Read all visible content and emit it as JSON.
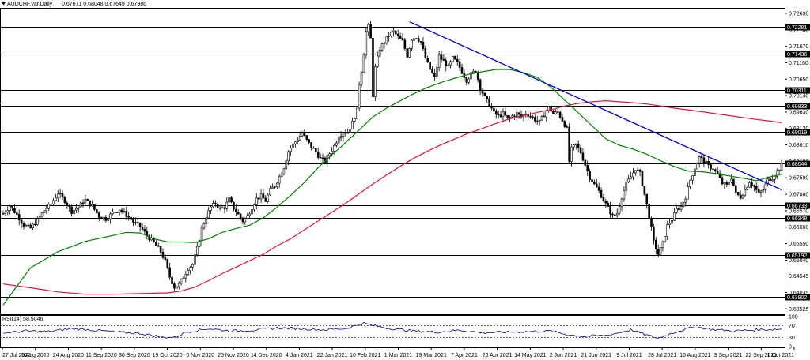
{
  "header": {
    "title": "AUDCHF.var,Daily",
    "ohlc": "0.67671 0.68048 0.67649 0.67986"
  },
  "rsi": {
    "label": "RSI(14) 58.5046",
    "levels": [
      100,
      70,
      30,
      0
    ],
    "level_labels": [
      "100",
      "70",
      "30",
      "0"
    ]
  },
  "colors": {
    "candles": "#000000",
    "sma_fast": "#008000",
    "sma_slow": "#dc143c",
    "trendline": "#0000cd",
    "rsi": "#000080",
    "grid": "#000000",
    "level_tag_bg": "#000000"
  },
  "chart_data": {
    "type": "candlestick",
    "x_labels": [
      "27 Jul 2020",
      "5 Aug 2020",
      "24 Aug 2020",
      "11 Sep 2020",
      "30 Sep 2020",
      "19 Oct 2020",
      "6 Nov 2020",
      "25 Nov 2020",
      "14 Dec 2020",
      "4 Jan 2021",
      "22 Jan 2021",
      "10 Feb 2021",
      "1 Mar 2021",
      "19 Mar 2021",
      "7 Apr 2021",
      "26 Apr 2021",
      "14 May 2021",
      "2 Jun 2021",
      "21 Jun 2021",
      "9 Jul 2021",
      "28 Jul 2021",
      "16 Aug 2021",
      "3 Sep 2021",
      "22 Sep 2021",
      "11 Oct 2021"
    ],
    "y_ticks": [
      "0.72690",
      "0.72180",
      "0.71670",
      "0.71160",
      "0.70650",
      "0.70140",
      "0.69630",
      "0.69120",
      "0.68610",
      "0.68100",
      "0.67590",
      "0.67080",
      "0.66570",
      "0.66060",
      "0.65550",
      "0.65040",
      "0.64545",
      "0.64035",
      "0.63525"
    ],
    "ylim": [
      0.6336,
      0.7286
    ],
    "levels": [
      "0.72281",
      "0.71436",
      "0.70311",
      "0.69833",
      "0.69019",
      "0.68044",
      "0.66733",
      "0.66348",
      "0.65192",
      "0.63902"
    ],
    "close_path": [
      [
        0,
        0.6648
      ],
      [
        3,
        0.6672
      ],
      [
        6,
        0.6645
      ],
      [
        9,
        0.6612
      ],
      [
        12,
        0.6603
      ],
      [
        15,
        0.6628
      ],
      [
        18,
        0.6658
      ],
      [
        21,
        0.6678
      ],
      [
        24,
        0.6712
      ],
      [
        27,
        0.6688
      ],
      [
        30,
        0.6655
      ],
      [
        33,
        0.6669
      ],
      [
        36,
        0.669
      ],
      [
        39,
        0.6671
      ],
      [
        42,
        0.664
      ],
      [
        45,
        0.6632
      ],
      [
        48,
        0.665
      ],
      [
        51,
        0.6662
      ],
      [
        54,
        0.6644
      ],
      [
        57,
        0.6622
      ],
      [
        60,
        0.6608
      ],
      [
        63,
        0.658
      ],
      [
        66,
        0.6558
      ],
      [
        69,
        0.653
      ],
      [
        71,
        0.65
      ],
      [
        73,
        0.6452
      ],
      [
        75,
        0.642
      ],
      [
        77,
        0.6428
      ],
      [
        79,
        0.6452
      ],
      [
        81,
        0.6478
      ],
      [
        83,
        0.649
      ],
      [
        85,
        0.654
      ],
      [
        87,
        0.66
      ],
      [
        89,
        0.664
      ],
      [
        91,
        0.6668
      ],
      [
        93,
        0.668
      ],
      [
        95,
        0.6662
      ],
      [
        97,
        0.6668
      ],
      [
        99,
        0.6692
      ],
      [
        101,
        0.6665
      ],
      [
        103,
        0.6645
      ],
      [
        105,
        0.6625
      ],
      [
        107,
        0.664
      ],
      [
        109,
        0.6668
      ],
      [
        111,
        0.6694
      ],
      [
        113,
        0.6702
      ],
      [
        115,
        0.6688
      ],
      [
        117,
        0.672
      ],
      [
        119,
        0.6735
      ],
      [
        121,
        0.6762
      ],
      [
        123,
        0.6792
      ],
      [
        125,
        0.6842
      ],
      [
        127,
        0.6862
      ],
      [
        129,
        0.688
      ],
      [
        131,
        0.6898
      ],
      [
        133,
        0.6875
      ],
      [
        135,
        0.6855
      ],
      [
        137,
        0.684
      ],
      [
        139,
        0.6818
      ],
      [
        141,
        0.681
      ],
      [
        143,
        0.6835
      ],
      [
        145,
        0.6858
      ],
      [
        147,
        0.6888
      ],
      [
        149,
        0.6902
      ],
      [
        151,
        0.69
      ],
      [
        153,
        0.693
      ],
      [
        155,
        0.6968
      ],
      [
        156,
        0.7052
      ],
      [
        157,
        0.7092
      ],
      [
        158,
        0.7145
      ],
      [
        159,
        0.7212
      ],
      [
        160,
        0.7228
      ],
      [
        161,
        0.719
      ],
      [
        162,
        0.7015
      ],
      [
        163,
        0.71
      ],
      [
        165,
        0.716
      ],
      [
        167,
        0.718
      ],
      [
        169,
        0.7202
      ],
      [
        171,
        0.7212
      ],
      [
        173,
        0.7196
      ],
      [
        175,
        0.7182
      ],
      [
        177,
        0.7138
      ],
      [
        179,
        0.719
      ],
      [
        181,
        0.7196
      ],
      [
        183,
        0.718
      ],
      [
        185,
        0.713
      ],
      [
        187,
        0.7095
      ],
      [
        189,
        0.707
      ],
      [
        191,
        0.7136
      ],
      [
        193,
        0.712
      ],
      [
        195,
        0.7102
      ],
      [
        197,
        0.713
      ],
      [
        199,
        0.7115
      ],
      [
        201,
        0.7088
      ],
      [
        203,
        0.7062
      ],
      [
        205,
        0.708
      ],
      [
        207,
        0.7092
      ],
      [
        209,
        0.7038
      ],
      [
        211,
        0.7008
      ],
      [
        213,
        0.6988
      ],
      [
        215,
        0.696
      ],
      [
        217,
        0.695
      ],
      [
        219,
        0.6958
      ],
      [
        221,
        0.6942
      ],
      [
        223,
        0.695
      ],
      [
        225,
        0.6958
      ],
      [
        227,
        0.6948
      ],
      [
        229,
        0.696
      ],
      [
        231,
        0.695
      ],
      [
        233,
        0.694
      ],
      [
        235,
        0.6932
      ],
      [
        237,
        0.6955
      ],
      [
        239,
        0.6978
      ],
      [
        241,
        0.6958
      ],
      [
        243,
        0.6962
      ],
      [
        245,
        0.6938
      ],
      [
        247,
        0.691
      ],
      [
        248,
        0.681
      ],
      [
        249,
        0.6848
      ],
      [
        251,
        0.6862
      ],
      [
        253,
        0.6838
      ],
      [
        255,
        0.68
      ],
      [
        257,
        0.676
      ],
      [
        259,
        0.6738
      ],
      [
        261,
        0.6718
      ],
      [
        263,
        0.669
      ],
      [
        265,
        0.6665
      ],
      [
        267,
        0.664
      ],
      [
        269,
        0.665
      ],
      [
        271,
        0.67
      ],
      [
        273,
        0.674
      ],
      [
        275,
        0.6762
      ],
      [
        277,
        0.6788
      ],
      [
        279,
        0.6772
      ],
      [
        281,
        0.6708
      ],
      [
        283,
        0.664
      ],
      [
        285,
        0.656
      ],
      [
        287,
        0.6522
      ],
      [
        289,
        0.6555
      ],
      [
        291,
        0.661
      ],
      [
        293,
        0.663
      ],
      [
        295,
        0.666
      ],
      [
        297,
        0.667
      ],
      [
        299,
        0.67
      ],
      [
        301,
        0.6752
      ],
      [
        303,
        0.679
      ],
      [
        305,
        0.6822
      ],
      [
        307,
        0.6812
      ],
      [
        309,
        0.6795
      ],
      [
        311,
        0.6788
      ],
      [
        313,
        0.677
      ],
      [
        315,
        0.6742
      ],
      [
        317,
        0.6735
      ],
      [
        319,
        0.676
      ],
      [
        321,
        0.671
      ],
      [
        323,
        0.67
      ],
      [
        325,
        0.6722
      ],
      [
        327,
        0.6748
      ],
      [
        329,
        0.6732
      ],
      [
        331,
        0.671
      ],
      [
        333,
        0.6722
      ],
      [
        335,
        0.6752
      ],
      [
        337,
        0.676
      ],
      [
        339,
        0.6778
      ],
      [
        341,
        0.6798
      ]
    ],
    "sma_fast_path": [
      [
        0,
        0.6365
      ],
      [
        12,
        0.648
      ],
      [
        24,
        0.653
      ],
      [
        36,
        0.6562
      ],
      [
        48,
        0.658
      ],
      [
        54,
        0.659
      ],
      [
        60,
        0.6588
      ],
      [
        66,
        0.657
      ],
      [
        72,
        0.656
      ],
      [
        78,
        0.656
      ],
      [
        84,
        0.6558
      ],
      [
        90,
        0.657
      ],
      [
        96,
        0.659
      ],
      [
        102,
        0.6602
      ],
      [
        108,
        0.6612
      ],
      [
        114,
        0.6635
      ],
      [
        120,
        0.6668
      ],
      [
        126,
        0.6705
      ],
      [
        132,
        0.6745
      ],
      [
        138,
        0.679
      ],
      [
        144,
        0.683
      ],
      [
        150,
        0.6868
      ],
      [
        156,
        0.6908
      ],
      [
        162,
        0.6948
      ],
      [
        168,
        0.6975
      ],
      [
        174,
        0.6998
      ],
      [
        180,
        0.702
      ],
      [
        186,
        0.704
      ],
      [
        192,
        0.7055
      ],
      [
        198,
        0.7068
      ],
      [
        204,
        0.708
      ],
      [
        210,
        0.7088
      ],
      [
        216,
        0.7095
      ],
      [
        222,
        0.7095
      ],
      [
        228,
        0.7085
      ],
      [
        234,
        0.707
      ],
      [
        240,
        0.704
      ],
      [
        246,
        0.7
      ],
      [
        252,
        0.696
      ],
      [
        258,
        0.692
      ],
      [
        264,
        0.688
      ],
      [
        270,
        0.686
      ],
      [
        276,
        0.6848
      ],
      [
        282,
        0.6832
      ],
      [
        288,
        0.6812
      ],
      [
        294,
        0.6794
      ],
      [
        300,
        0.678
      ],
      [
        306,
        0.6778
      ],
      [
        312,
        0.6772
      ],
      [
        318,
        0.6765
      ],
      [
        324,
        0.6758
      ],
      [
        330,
        0.675
      ],
      [
        336,
        0.6762
      ],
      [
        341,
        0.677
      ]
    ],
    "sma_slow_path": [
      [
        0,
        0.643
      ],
      [
        12,
        0.6418
      ],
      [
        24,
        0.6405
      ],
      [
        36,
        0.6398
      ],
      [
        48,
        0.6398
      ],
      [
        60,
        0.64
      ],
      [
        72,
        0.6402
      ],
      [
        78,
        0.6408
      ],
      [
        84,
        0.642
      ],
      [
        90,
        0.644
      ],
      [
        96,
        0.6462
      ],
      [
        102,
        0.6482
      ],
      [
        108,
        0.6502
      ],
      [
        114,
        0.6522
      ],
      [
        120,
        0.6548
      ],
      [
        126,
        0.657
      ],
      [
        132,
        0.6598
      ],
      [
        138,
        0.6625
      ],
      [
        144,
        0.6652
      ],
      [
        150,
        0.668
      ],
      [
        156,
        0.671
      ],
      [
        162,
        0.674
      ],
      [
        168,
        0.6768
      ],
      [
        174,
        0.6795
      ],
      [
        180,
        0.682
      ],
      [
        186,
        0.6842
      ],
      [
        192,
        0.6862
      ],
      [
        198,
        0.688
      ],
      [
        204,
        0.6898
      ],
      [
        210,
        0.6912
      ],
      [
        216,
        0.6928
      ],
      [
        222,
        0.6942
      ],
      [
        228,
        0.6952
      ],
      [
        234,
        0.6962
      ],
      [
        240,
        0.697
      ],
      [
        246,
        0.6982
      ],
      [
        252,
        0.699
      ],
      [
        258,
        0.6995
      ],
      [
        264,
        0.6998
      ],
      [
        270,
        0.6995
      ],
      [
        276,
        0.6992
      ],
      [
        282,
        0.6988
      ],
      [
        288,
        0.6982
      ],
      [
        294,
        0.6975
      ],
      [
        300,
        0.697
      ],
      [
        306,
        0.6964
      ],
      [
        312,
        0.6958
      ],
      [
        318,
        0.6952
      ],
      [
        324,
        0.6946
      ],
      [
        330,
        0.694
      ],
      [
        336,
        0.6935
      ],
      [
        341,
        0.693
      ]
    ],
    "trendline": [
      [
        178,
        0.7243
      ],
      [
        341,
        0.6722
      ]
    ],
    "n_bars": 342,
    "rsi_path": [
      [
        0,
        45
      ],
      [
        10,
        52
      ],
      [
        20,
        50
      ],
      [
        30,
        60
      ],
      [
        40,
        55
      ],
      [
        50,
        48
      ],
      [
        60,
        44
      ],
      [
        70,
        32
      ],
      [
        75,
        30
      ],
      [
        80,
        48
      ],
      [
        90,
        60
      ],
      [
        100,
        52
      ],
      [
        110,
        55
      ],
      [
        120,
        62
      ],
      [
        130,
        60
      ],
      [
        140,
        56
      ],
      [
        150,
        60
      ],
      [
        158,
        78
      ],
      [
        162,
        70
      ],
      [
        170,
        60
      ],
      [
        180,
        52
      ],
      [
        190,
        48
      ],
      [
        200,
        55
      ],
      [
        210,
        46
      ],
      [
        220,
        48
      ],
      [
        230,
        50
      ],
      [
        240,
        52
      ],
      [
        247,
        40
      ],
      [
        255,
        34
      ],
      [
        265,
        38
      ],
      [
        275,
        56
      ],
      [
        283,
        36
      ],
      [
        287,
        28
      ],
      [
        295,
        50
      ],
      [
        303,
        66
      ],
      [
        310,
        58
      ],
      [
        320,
        52
      ],
      [
        330,
        56
      ],
      [
        341,
        58.5
      ]
    ]
  }
}
